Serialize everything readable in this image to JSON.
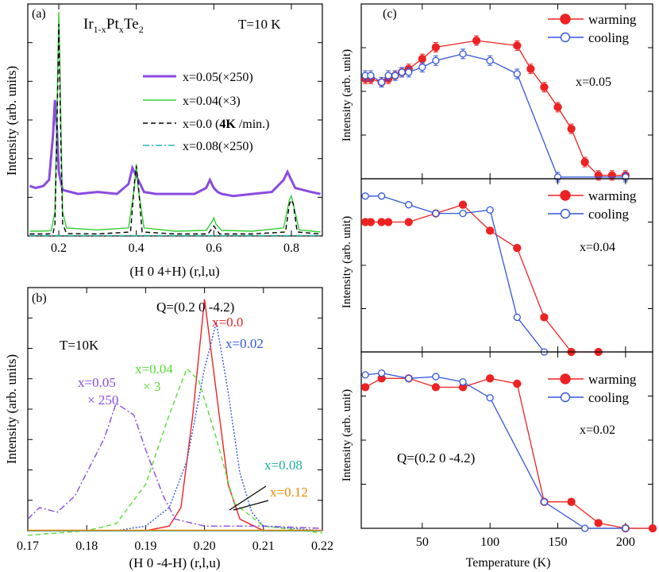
{
  "chart_data": [
    {
      "panel": "(a)",
      "type": "line",
      "title": "Ir1-xPtxTe2",
      "compound_parts": [
        "Ir",
        "1-x",
        "Pt",
        "x",
        "Te",
        "2"
      ],
      "condition": "T=10 K",
      "xlabel": "(H 0 4+H) (r,l,u)",
      "ylabel": "Intensity (arb. units)",
      "xlim": [
        0.12,
        0.88
      ],
      "ylim": [
        0,
        5.8
      ],
      "xticks": [
        0.2,
        0.4,
        0.6,
        0.8
      ],
      "xtick_labels": [
        "0.2",
        "0.4",
        "0.6",
        "0.8"
      ],
      "legend_position": "right",
      "series": [
        {
          "name": "x=0.05(×250)",
          "color": "#8a4be0",
          "style": "solid-thick",
          "x": [
            0.125,
            0.14,
            0.16,
            0.175,
            0.185,
            0.19,
            0.195,
            0.2,
            0.21,
            0.25,
            0.3,
            0.35,
            0.38,
            0.39,
            0.4,
            0.41,
            0.42,
            0.45,
            0.5,
            0.55,
            0.58,
            0.59,
            0.6,
            0.61,
            0.62,
            0.65,
            0.7,
            0.75,
            0.78,
            0.79,
            0.8,
            0.81,
            0.83,
            0.85,
            0.875
          ],
          "y": [
            1.25,
            1.2,
            1.25,
            1.4,
            2.5,
            3.4,
            2.7,
            1.6,
            1.15,
            1.05,
            1.1,
            1.05,
            1.3,
            1.7,
            1.5,
            1.3,
            1.1,
            1.05,
            1.05,
            1.05,
            1.2,
            1.4,
            1.2,
            1.1,
            1.05,
            1.0,
            1.05,
            1.1,
            1.4,
            1.6,
            1.4,
            1.2,
            1.15,
            1.1,
            1.05
          ]
        },
        {
          "name": "x=0.04(×3)",
          "color": "#33cc33",
          "style": "solid",
          "x": [
            0.125,
            0.15,
            0.18,
            0.19,
            0.195,
            0.2,
            0.205,
            0.21,
            0.22,
            0.3,
            0.38,
            0.395,
            0.4,
            0.405,
            0.42,
            0.5,
            0.58,
            0.595,
            0.6,
            0.605,
            0.62,
            0.7,
            0.78,
            0.795,
            0.8,
            0.805,
            0.82,
            0.875
          ],
          "y": [
            0.12,
            0.12,
            0.13,
            0.6,
            3.0,
            5.6,
            3.0,
            0.6,
            0.2,
            0.15,
            0.2,
            1.2,
            1.8,
            1.2,
            0.2,
            0.12,
            0.14,
            0.35,
            0.45,
            0.3,
            0.14,
            0.12,
            0.2,
            0.9,
            1.0,
            0.8,
            0.15,
            0.1
          ]
        },
        {
          "name": "x=0.0 (4K /min.)",
          "name_parts": [
            "x=0.0 (",
            "4K",
            " /min.)"
          ],
          "color": "#000000",
          "style": "dash",
          "x": [
            0.125,
            0.17,
            0.185,
            0.19,
            0.195,
            0.2,
            0.205,
            0.21,
            0.22,
            0.3,
            0.385,
            0.395,
            0.4,
            0.405,
            0.415,
            0.5,
            0.585,
            0.6,
            0.615,
            0.7,
            0.785,
            0.795,
            0.8,
            0.805,
            0.815,
            0.875
          ],
          "y": [
            0.05,
            0.05,
            0.06,
            0.3,
            2.5,
            5.3,
            2.5,
            0.3,
            0.06,
            0.05,
            0.1,
            1.3,
            1.75,
            1.3,
            0.1,
            0.05,
            0.05,
            0.25,
            0.05,
            0.05,
            0.1,
            0.8,
            0.9,
            0.8,
            0.1,
            0.05
          ]
        },
        {
          "name": "x=0.08(×250)",
          "color": "#20b8b0",
          "style": "dashdot",
          "x": [
            0.125,
            0.3,
            0.5,
            0.7,
            0.875
          ],
          "y": [
            0.01,
            0.01,
            0.01,
            0.01,
            0.01
          ]
        }
      ]
    },
    {
      "panel": "(b)",
      "type": "line",
      "title": "Q=(0.2 0 -4.2)",
      "condition": "T=10K",
      "xlabel": "(H 0 -4-H) (r,l,u)",
      "ylabel": "Intensity  (arb. units)",
      "xlim": [
        0.17,
        0.22
      ],
      "ylim": [
        0,
        1.05
      ],
      "xticks": [
        0.17,
        0.18,
        0.19,
        0.2,
        0.21,
        0.22
      ],
      "xtick_labels": [
        "0.17",
        "0.18",
        "0.19",
        "0.20",
        "0.21",
        "0.22"
      ],
      "series": [
        {
          "name": "x=0.0",
          "label_lines": [
            "x=0.0"
          ],
          "color": "#ee2222",
          "style": "solid",
          "x": [
            0.17,
            0.19,
            0.194,
            0.196,
            0.198,
            0.2,
            0.202,
            0.204,
            0.206,
            0.21,
            0.22
          ],
          "y": [
            0,
            0,
            0.02,
            0.1,
            0.5,
            1.0,
            0.6,
            0.2,
            0.05,
            0,
            0
          ]
        },
        {
          "name": "x=0.02",
          "label_lines": [
            "x=0.02"
          ],
          "color": "#3355dd",
          "style": "dot",
          "x": [
            0.17,
            0.185,
            0.19,
            0.194,
            0.197,
            0.2,
            0.202,
            0.204,
            0.206,
            0.208,
            0.21,
            0.22
          ],
          "y": [
            0,
            0,
            0.02,
            0.1,
            0.3,
            0.7,
            0.9,
            0.6,
            0.25,
            0.08,
            0.02,
            0
          ]
        },
        {
          "name": "x=0.04 × 3",
          "label_lines": [
            "x=0.04",
            "× 3"
          ],
          "color": "#55dd33",
          "style": "dash",
          "x": [
            0.17,
            0.18,
            0.185,
            0.19,
            0.194,
            0.197,
            0.199,
            0.202,
            0.205,
            0.21,
            0.22
          ],
          "y": [
            -0.02,
            0,
            0.03,
            0.2,
            0.5,
            0.7,
            0.65,
            0.4,
            0.12,
            0.02,
            -0.01
          ]
        },
        {
          "name": "x=0.05 × 250",
          "label_lines": [
            "x=0.05",
            "× 250"
          ],
          "color": "#8a4be0",
          "style": "dashdot",
          "x": [
            0.17,
            0.172,
            0.175,
            0.178,
            0.18,
            0.183,
            0.185,
            0.188,
            0.19,
            0.193,
            0.195,
            0.2,
            0.21,
            0.22
          ],
          "y": [
            0.05,
            0.1,
            0.08,
            0.15,
            0.25,
            0.4,
            0.55,
            0.5,
            0.35,
            0.15,
            0.05,
            0.02,
            0.02,
            0.01
          ]
        },
        {
          "name": "x=0.08",
          "label_lines": [
            "x=0.08"
          ],
          "color": "#20b0a0",
          "style": "solid",
          "x": [
            0.17,
            0.22
          ],
          "y": [
            0,
            0
          ]
        },
        {
          "name": "x=0.12",
          "label_lines": [
            "x=0.12"
          ],
          "color": "#ee8800",
          "style": "solid",
          "x": [
            0.17,
            0.22
          ],
          "y": [
            0.002,
            0.002
          ]
        }
      ]
    },
    {
      "panel": "(c)",
      "type": "line",
      "series_label": "x=0.05",
      "ylabel": "Intensity (arb. unit)",
      "xlim": [
        5,
        220
      ],
      "ylim": [
        0,
        1.05
      ],
      "legend": [
        "warming",
        "cooling"
      ],
      "series": [
        {
          "name": "warming",
          "color": "#ee2222",
          "marker": "filled-circle",
          "x": [
            8,
            12,
            20,
            25,
            30,
            35,
            40,
            50,
            60,
            90,
            120,
            130,
            140,
            150,
            160,
            170,
            180,
            190,
            200
          ],
          "y": [
            0.6,
            0.6,
            0.58,
            0.6,
            0.62,
            0.64,
            0.66,
            0.72,
            0.79,
            0.83,
            0.8,
            0.66,
            0.55,
            0.43,
            0.3,
            0.1,
            0.02,
            0.02,
            0.02
          ]
        },
        {
          "name": "cooling",
          "color": "#3355dd",
          "marker": "open-circle",
          "x": [
            8,
            12,
            20,
            25,
            30,
            35,
            40,
            50,
            60,
            80,
            100,
            120,
            150,
            200
          ],
          "y": [
            0.62,
            0.62,
            0.58,
            0.62,
            0.62,
            0.64,
            0.64,
            0.67,
            0.71,
            0.75,
            0.71,
            0.63,
            0.01,
            0.01
          ]
        }
      ]
    },
    {
      "panel": "(c)",
      "type": "line",
      "series_label": "x=0.04",
      "ylabel": "Intensity (arb. unit)",
      "xlim": [
        5,
        220
      ],
      "ylim": [
        0,
        1.0
      ],
      "legend": [
        "warming",
        "cooling"
      ],
      "series": [
        {
          "name": "warming",
          "color": "#ee2222",
          "marker": "filled-circle",
          "x": [
            8,
            12,
            20,
            25,
            40,
            60,
            80,
            100,
            120,
            140,
            160,
            180
          ],
          "y": [
            0.75,
            0.75,
            0.75,
            0.75,
            0.75,
            0.8,
            0.85,
            0.7,
            0.6,
            0.2,
            0.0,
            0.0
          ]
        },
        {
          "name": "cooling",
          "color": "#3355dd",
          "marker": "open-circle",
          "x": [
            8,
            20,
            40,
            60,
            80,
            100,
            120,
            140
          ],
          "y": [
            0.9,
            0.9,
            0.85,
            0.8,
            0.8,
            0.82,
            0.2,
            0.0
          ]
        }
      ]
    },
    {
      "panel": "(c)",
      "type": "line",
      "series_label": "x=0.02",
      "annotation": "Q=(0.2 0 -4.2)",
      "xlabel": "Temperature (K)",
      "ylabel": "Intensity (arb. unit)",
      "xlim": [
        5,
        220
      ],
      "ylim": [
        0,
        1.0
      ],
      "xticks": [
        50,
        100,
        150,
        200
      ],
      "xtick_labels": [
        "50",
        "100",
        "150",
        "200"
      ],
      "legend": [
        "warming",
        "cooling"
      ],
      "series": [
        {
          "name": "warming",
          "color": "#ee2222",
          "marker": "filled-circle",
          "x": [
            8,
            20,
            40,
            60,
            80,
            100,
            120,
            140,
            160,
            180,
            200,
            220
          ],
          "y": [
            0.8,
            0.85,
            0.85,
            0.8,
            0.8,
            0.85,
            0.82,
            0.15,
            0.15,
            0.03,
            0.0,
            0.0
          ]
        },
        {
          "name": "cooling",
          "color": "#3355dd",
          "marker": "open-circle",
          "x": [
            8,
            20,
            40,
            60,
            80,
            100,
            140,
            170,
            200
          ],
          "y": [
            0.87,
            0.88,
            0.85,
            0.86,
            0.83,
            0.74,
            0.15,
            0.0,
            0.0
          ]
        }
      ]
    }
  ]
}
